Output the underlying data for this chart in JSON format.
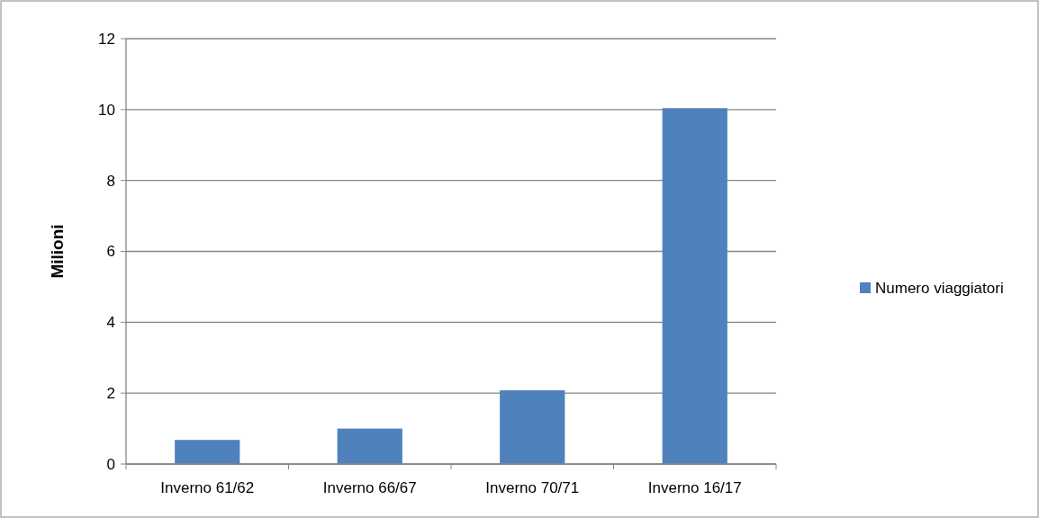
{
  "chart_data": {
    "type": "bar",
    "ylabel": "Milioni",
    "categories": [
      "Inverno 61/62",
      "Inverno 66/67",
      "Inverno 70/71",
      "Inverno 16/17"
    ],
    "series": [
      {
        "name": "Numero viaggiatori",
        "color": "#4f81bd",
        "values": [
          0.68,
          1.0,
          2.08,
          10.04
        ]
      }
    ],
    "ylim": [
      0,
      12
    ],
    "yticks": [
      0,
      2,
      4,
      6,
      8,
      10,
      12
    ],
    "grid": "y",
    "legend": "right"
  }
}
